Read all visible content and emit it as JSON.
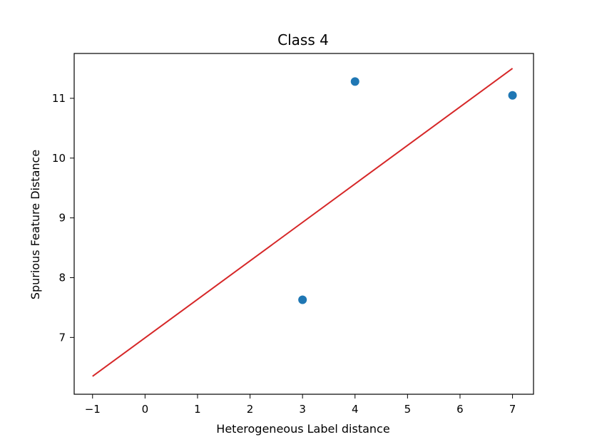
{
  "chart_data": {
    "type": "scatter",
    "title": "Class 4",
    "xlabel": "Heterogeneous Label distance",
    "ylabel": "Spurious Feature Distance",
    "xlim": [
      -1.35,
      7.4
    ],
    "ylim": [
      6.05,
      11.75
    ],
    "x_ticks": [
      -1,
      0,
      1,
      2,
      3,
      4,
      5,
      6,
      7
    ],
    "x_tick_labels": [
      "−1",
      "0",
      "1",
      "2",
      "3",
      "4",
      "5",
      "6",
      "7"
    ],
    "y_ticks": [
      7,
      8,
      9,
      10,
      11
    ],
    "y_tick_labels": [
      "7",
      "8",
      "9",
      "10",
      "11"
    ],
    "grid": false,
    "legend": "none",
    "points": [
      {
        "x": 3,
        "y": 7.63
      },
      {
        "x": 4,
        "y": 11.28
      },
      {
        "x": 7,
        "y": 11.05
      }
    ],
    "fit_line": {
      "x": [
        -1,
        7
      ],
      "y": [
        6.35,
        11.5
      ]
    },
    "point_color": "#1f77b4",
    "line_color": "#d62728"
  }
}
